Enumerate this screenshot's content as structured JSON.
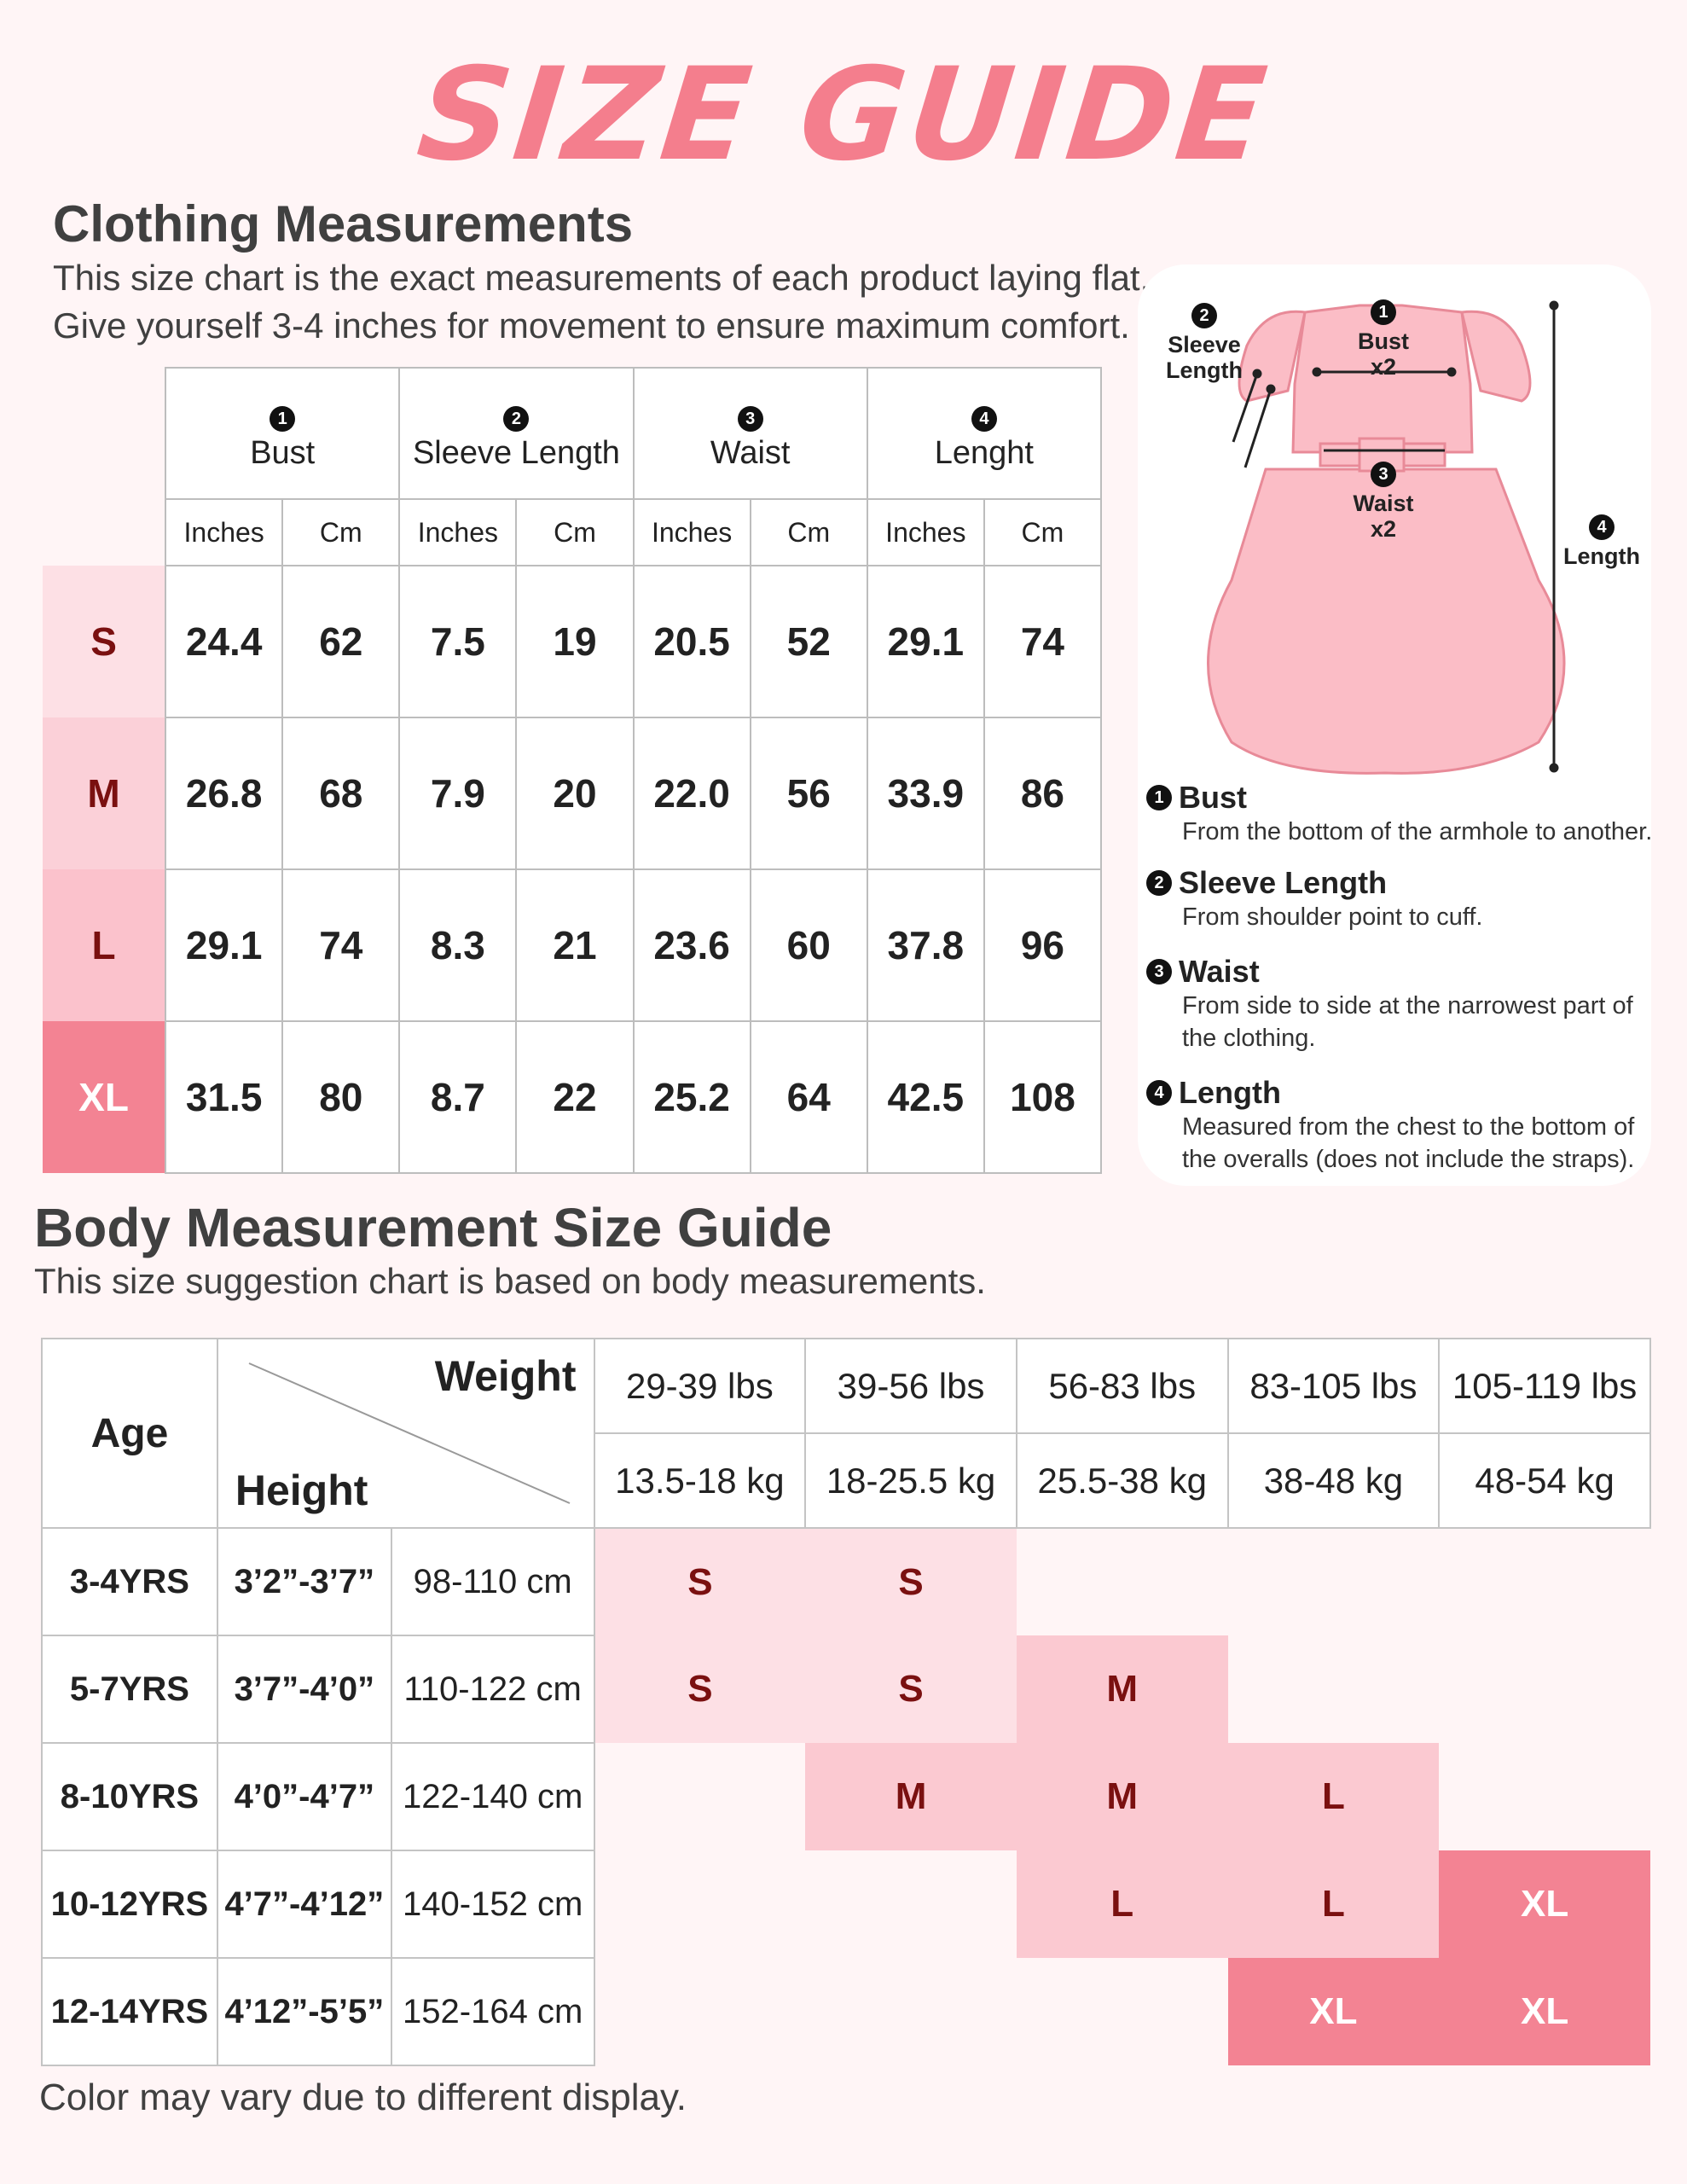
{
  "title": "SIZE GUIDE",
  "clothing": {
    "heading": "Clothing Measurements",
    "desc1": "This size chart is the exact measurements of each product laying flat.",
    "desc2": "Give yourself 3-4 inches for movement to ensure maximum comfort.",
    "columns": [
      {
        "num": "1",
        "label": "Bust"
      },
      {
        "num": "2",
        "label": "Sleeve Length"
      },
      {
        "num": "3",
        "label": "Waist"
      },
      {
        "num": "4",
        "label": "Lenght"
      }
    ],
    "unit_inches": "Inches",
    "unit_cm": "Cm",
    "rows": [
      {
        "size": "S",
        "values": [
          "24.4",
          "62",
          "7.5",
          "19",
          "20.5",
          "52",
          "29.1",
          "74"
        ]
      },
      {
        "size": "M",
        "values": [
          "26.8",
          "68",
          "7.9",
          "20",
          "22.0",
          "56",
          "33.9",
          "86"
        ]
      },
      {
        "size": "L",
        "values": [
          "29.1",
          "74",
          "8.3",
          "21",
          "23.6",
          "60",
          "37.8",
          "96"
        ]
      },
      {
        "size": "XL",
        "values": [
          "31.5",
          "80",
          "8.7",
          "22",
          "25.2",
          "64",
          "42.5",
          "108"
        ]
      }
    ],
    "size_colors": [
      "#fde0e5",
      "#fbd0d8",
      "#fbc2cc",
      "#f38393"
    ]
  },
  "diagram": {
    "sleeve": {
      "num": "2",
      "label": "Sleeve\nLength"
    },
    "bust": {
      "num": "1",
      "label": "Bust\nx2"
    },
    "waist": {
      "num": "3",
      "label": "Waist\nx2"
    },
    "length": {
      "num": "4",
      "label": "Length"
    },
    "dress_color": "#fbbdc6",
    "dress_outline": "#e88a98"
  },
  "definitions": [
    {
      "num": "1",
      "title": "Bust",
      "text": "From the bottom of the armhole to another."
    },
    {
      "num": "2",
      "title": "Sleeve Length",
      "text": "From shoulder point to cuff."
    },
    {
      "num": "3",
      "title": "Waist",
      "text": "From side to side at the narrowest part of the clothing."
    },
    {
      "num": "4",
      "title": "Length",
      "text": "Measured from the chest to the bottom of the overalls (does not include the straps)."
    }
  ],
  "body": {
    "heading": "Body Measurement Size Guide",
    "desc": "This size suggestion chart is based on body measurements.",
    "age_label": "Age",
    "weight_label": "Weight",
    "height_label": "Height",
    "weights_lbs": [
      "29-39 lbs",
      "39-56 lbs",
      "56-83 lbs",
      "83-105 lbs",
      "105-119 lbs"
    ],
    "weights_kg": [
      "13.5-18 kg",
      "18-25.5 kg",
      "25.5-38 kg",
      "38-48 kg",
      "48-54 kg"
    ],
    "rows": [
      {
        "age": "3-4YRS",
        "height_ft": "3’2”-3’7”",
        "height_cm": "98-110 cm",
        "sizes": [
          "S",
          "S",
          "",
          "",
          ""
        ]
      },
      {
        "age": "5-7YRS",
        "height_ft": "3’7”-4’0”",
        "height_cm": "110-122 cm",
        "sizes": [
          "S",
          "S",
          "M",
          "",
          ""
        ]
      },
      {
        "age": "8-10YRS",
        "height_ft": "4’0”-4’7”",
        "height_cm": "122-140 cm",
        "sizes": [
          "",
          "M",
          "M",
          "L",
          ""
        ]
      },
      {
        "age": "10-12YRS",
        "height_ft": "4’7”-4’12”",
        "height_cm": "140-152 cm",
        "sizes": [
          "",
          "",
          "L",
          "L",
          "XL"
        ]
      },
      {
        "age": "12-14YRS",
        "height_ft": "4’12”-5’5”",
        "height_cm": "152-164 cm",
        "sizes": [
          "",
          "",
          "",
          "XL",
          "XL"
        ]
      }
    ]
  },
  "footer": "Color may vary due to different display."
}
